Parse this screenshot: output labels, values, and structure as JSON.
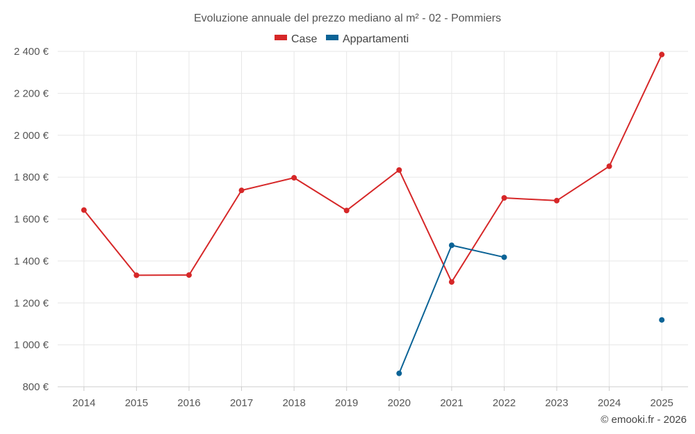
{
  "chart_data": {
    "type": "line",
    "title": "Evoluzione annuale del prezzo mediano al m² - 02 - Pommiers",
    "x": [
      "2014",
      "2015",
      "2016",
      "2017",
      "2018",
      "2019",
      "2020",
      "2021",
      "2022",
      "2023",
      "2024",
      "2025"
    ],
    "ylim": [
      800,
      2400
    ],
    "yticks": [
      800,
      1000,
      1200,
      1400,
      1600,
      1800,
      2000,
      2200,
      2400
    ],
    "ytick_labels": [
      "800 €",
      "1 000 €",
      "1 200 €",
      "1 400 €",
      "1 600 €",
      "1 800 €",
      "2 000 €",
      "2 200 €",
      "2 400 €"
    ],
    "grid": true,
    "legend_position": "top-center",
    "series": [
      {
        "name": "Case",
        "color": "#d62728",
        "values": [
          1643,
          1332,
          1333,
          1737,
          1797,
          1641,
          1834,
          1300,
          1701,
          1688,
          1852,
          2385
        ]
      },
      {
        "name": "Appartamenti",
        "color": "#0b6396",
        "values": [
          null,
          null,
          null,
          null,
          null,
          null,
          864,
          1475,
          1418,
          null,
          null,
          1119
        ]
      }
    ]
  },
  "credit": "© emooki.fr - 2026"
}
